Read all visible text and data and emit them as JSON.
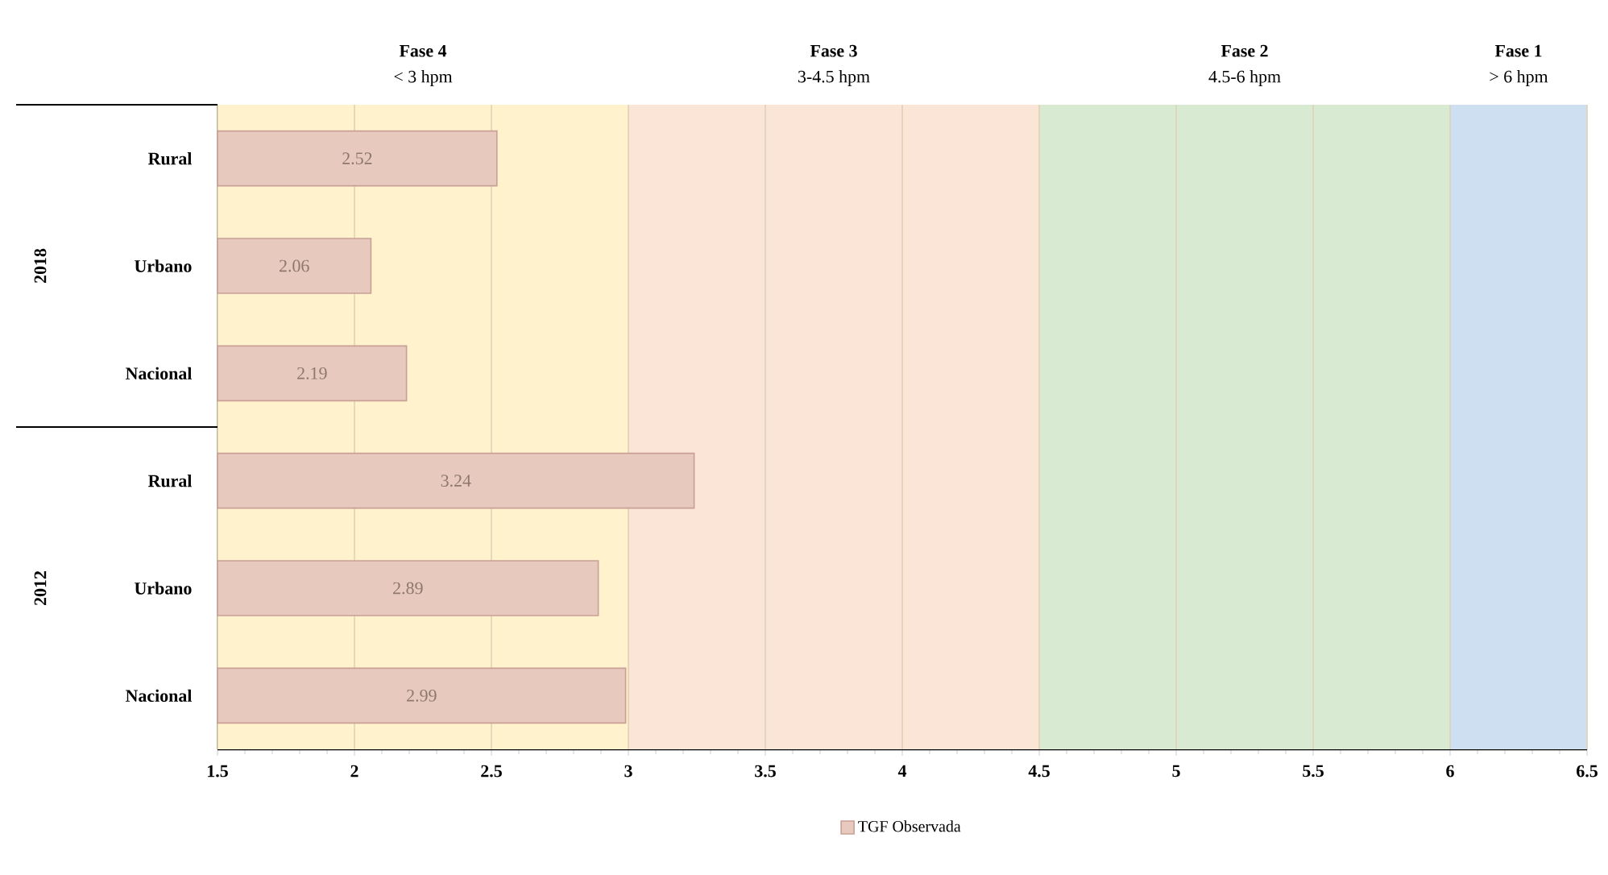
{
  "chart_data": {
    "type": "bar",
    "orientation": "horizontal",
    "categories": [
      "Rural",
      "Urbano",
      "Nacional",
      "Rural",
      "Urbano",
      "Nacional"
    ],
    "series": [
      {
        "name": "TGF Observada",
        "color": "#e8c9bd",
        "values": [
          2.52,
          2.06,
          2.19,
          3.24,
          2.89,
          2.99
        ]
      }
    ],
    "value_labels": [
      "2.52",
      "2.06",
      "2.19",
      "3.24",
      "2.89",
      "2.99"
    ],
    "xlim": [
      1.5,
      6.5
    ],
    "xticks": [
      1.5,
      2,
      2.5,
      3,
      3.5,
      4,
      4.5,
      5,
      5.5,
      6,
      6.5
    ],
    "grid": "x",
    "legend": "bottom",
    "bands": [
      {
        "axis": "x",
        "from": 1.5,
        "to": 3,
        "label": "Fase 4",
        "color": "#fff2cc"
      },
      {
        "axis": "x",
        "from": 3,
        "to": 4.5,
        "label": "Fase 3",
        "color": "#fbe5d6"
      },
      {
        "axis": "x",
        "from": 4.5,
        "to": 6,
        "label": "Fase 2",
        "color": "#d9ead3"
      },
      {
        "axis": "x",
        "from": 6,
        "to": 6.5,
        "label": "Fase 1",
        "color": "#cddff0"
      }
    ],
    "annotations": [
      "< 3 hpm",
      "3-4.5 hpm",
      "4.5-6 hpm",
      "> 6 hpm",
      "2018",
      "2012"
    ]
  }
}
